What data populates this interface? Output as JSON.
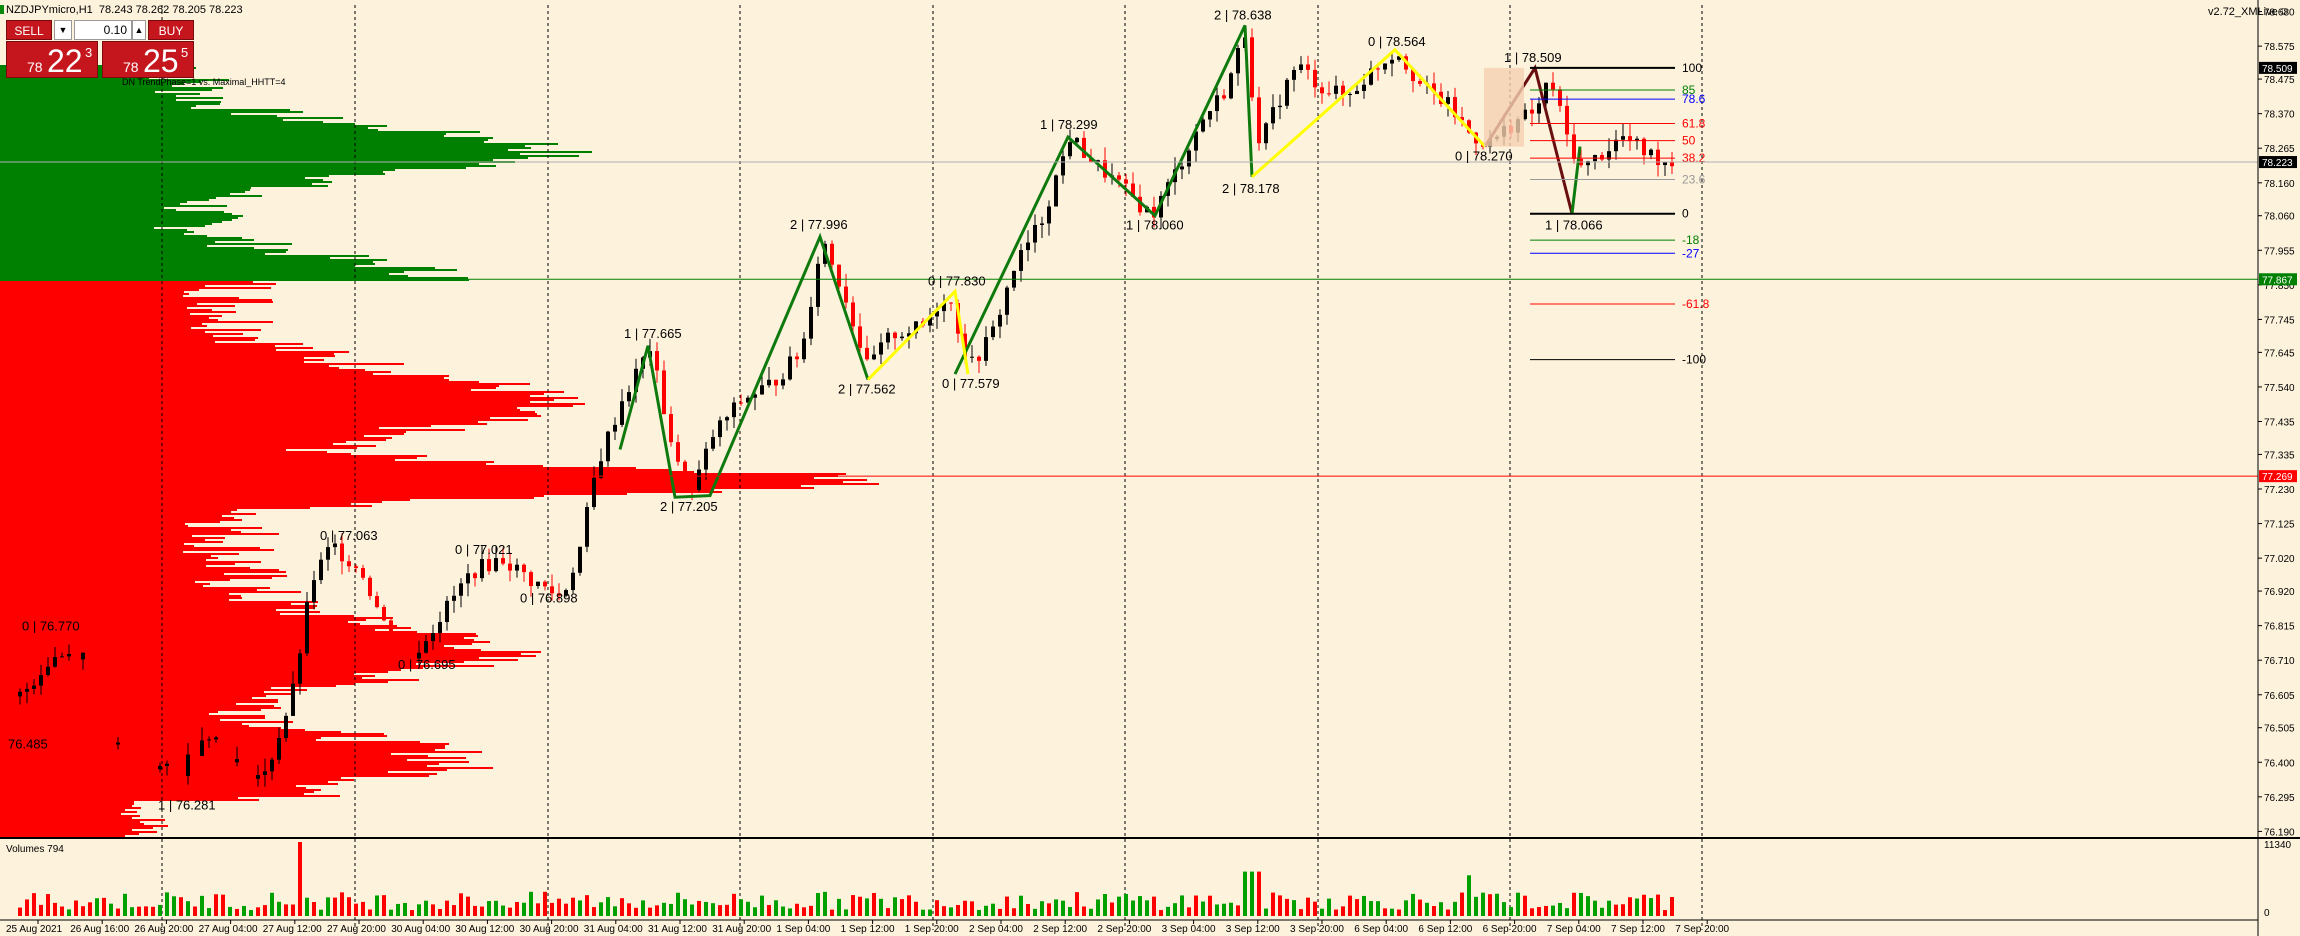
{
  "header": {
    "symbol": "NZDJPYmicro,H1",
    "ohlc": "78.243 78.262 78.205 78.223",
    "version": "v2.72_XMLive"
  },
  "trade_panel": {
    "sell_label": "SELL",
    "buy_label": "BUY",
    "lot": "0.10",
    "sell_small": "78",
    "sell_big": "22",
    "sell_sup": "3",
    "buy_small": "78",
    "buy_big": "25",
    "buy_sup": "5"
  },
  "indicator_label": "DN TrendPhase=1 vs. Maximal_HHTT=4",
  "volumes_label": "Volumes 794",
  "colors": {
    "background": "#fdf2dc",
    "bull_candle": "#000000",
    "bear_candle": "#ff0000",
    "zigzag_green": "#0e7a0e",
    "zigzag_yellow": "#ffff00",
    "zigzag_dark": "#6a0f0f",
    "profile_green": "#008000",
    "profile_red": "#ff0000",
    "volume_green": "#00a000",
    "volume_red": "#ff0000"
  },
  "chart_data": {
    "type": "candlestick",
    "price_axis": {
      "ticks": [
        "78.680",
        "78.575",
        "78.475",
        "78.370",
        "78.265",
        "78.160",
        "78.060",
        "77.955",
        "77.850",
        "77.745",
        "77.645",
        "77.540",
        "77.435",
        "77.335",
        "77.230",
        "77.125",
        "77.020",
        "76.920",
        "76.815",
        "76.710",
        "76.605",
        "76.505",
        "76.400",
        "76.295",
        "76.190"
      ],
      "min": 76.17,
      "max": 78.7,
      "current_price": "78.223",
      "markers": [
        {
          "label": "78.509",
          "price": 78.509,
          "color": "#000000"
        },
        {
          "label": "78.223",
          "price": 78.223,
          "color": "#000000"
        },
        {
          "label": "77.867",
          "price": 77.867,
          "color": "#008000"
        },
        {
          "label": "77.269",
          "price": 77.269,
          "color": "#ff0000"
        }
      ]
    },
    "time_axis": {
      "labels": [
        "25 Aug 2021",
        "26 Aug 16:00",
        "26 Aug 20:00",
        "27 Aug 04:00",
        "27 Aug 12:00",
        "27 Aug 20:00",
        "30 Aug 04:00",
        "30 Aug 12:00",
        "30 Aug 20:00",
        "31 Aug 04:00",
        "31 Aug 12:00",
        "31 Aug 20:00",
        "1 Sep 04:00",
        "1 Sep 12:00",
        "1 Sep 20:00",
        "2 Sep 04:00",
        "2 Sep 12:00",
        "2 Sep 20:00",
        "3 Sep 04:00",
        "3 Sep 12:00",
        "3 Sep 20:00",
        "6 Sep 04:00",
        "6 Sep 12:00",
        "6 Sep 20:00",
        "7 Sep 04:00",
        "7 Sep 12:00",
        "7 Sep 20:00"
      ]
    },
    "zigzag_labels": [
      {
        "text": "0 | 76.770",
        "price": 76.77
      },
      {
        "text": "76.485",
        "price": 76.485
      },
      {
        "text": "1 | 76.281",
        "price": 76.281
      },
      {
        "text": "0 | 77.063",
        "price": 77.063
      },
      {
        "text": "0 | 76.695",
        "price": 76.695
      },
      {
        "text": "0 | 77.021",
        "price": 77.021
      },
      {
        "text": "0 | 76.898",
        "price": 76.898
      },
      {
        "text": "1 | 77.665",
        "price": 77.665
      },
      {
        "text": "2 | 77.205",
        "price": 77.205
      },
      {
        "text": "2 | 77.996",
        "price": 77.996
      },
      {
        "text": "2 | 77.562",
        "price": 77.562
      },
      {
        "text": "0 | 77.830",
        "price": 77.83
      },
      {
        "text": "0 | 77.579",
        "price": 77.579
      },
      {
        "text": "1 | 78.299",
        "price": 78.299
      },
      {
        "text": "1 | 78.060",
        "price": 78.06
      },
      {
        "text": "2 | 78.638",
        "price": 78.638
      },
      {
        "text": "2 | 78.178",
        "price": 78.178
      },
      {
        "text": "0 | 78.564",
        "price": 78.564
      },
      {
        "text": "0 | 78.270",
        "price": 78.27
      },
      {
        "text": "1 | 78.509",
        "price": 78.509
      },
      {
        "text": "1 | 78.066",
        "price": 78.066
      }
    ],
    "fibonacci": [
      {
        "label": "100",
        "price": 78.509,
        "color": "#000000"
      },
      {
        "label": "85",
        "price": 78.442,
        "color": "#008000"
      },
      {
        "label": "78.6",
        "price": 78.414,
        "color": "#0000ff"
      },
      {
        "label": "61.8",
        "price": 78.34,
        "color": "#ff0000"
      },
      {
        "label": "50",
        "price": 78.288,
        "color": "#ff0000"
      },
      {
        "label": "38.2",
        "price": 78.235,
        "color": "#ff0000"
      },
      {
        "label": "23.6",
        "price": 78.17,
        "color": "#999999"
      },
      {
        "label": "0",
        "price": 78.066,
        "color": "#000000"
      },
      {
        "label": "-18",
        "price": 77.986,
        "color": "#008000"
      },
      {
        "label": "-27",
        "price": 77.946,
        "color": "#0000ff"
      },
      {
        "label": "-61.8",
        "price": 77.792,
        "color": "#ff0000"
      },
      {
        "label": "-100",
        "price": 77.623,
        "color": "#000000"
      }
    ],
    "volume_axis": {
      "max_label": "11340",
      "min_label": "0",
      "max": 11340
    }
  }
}
